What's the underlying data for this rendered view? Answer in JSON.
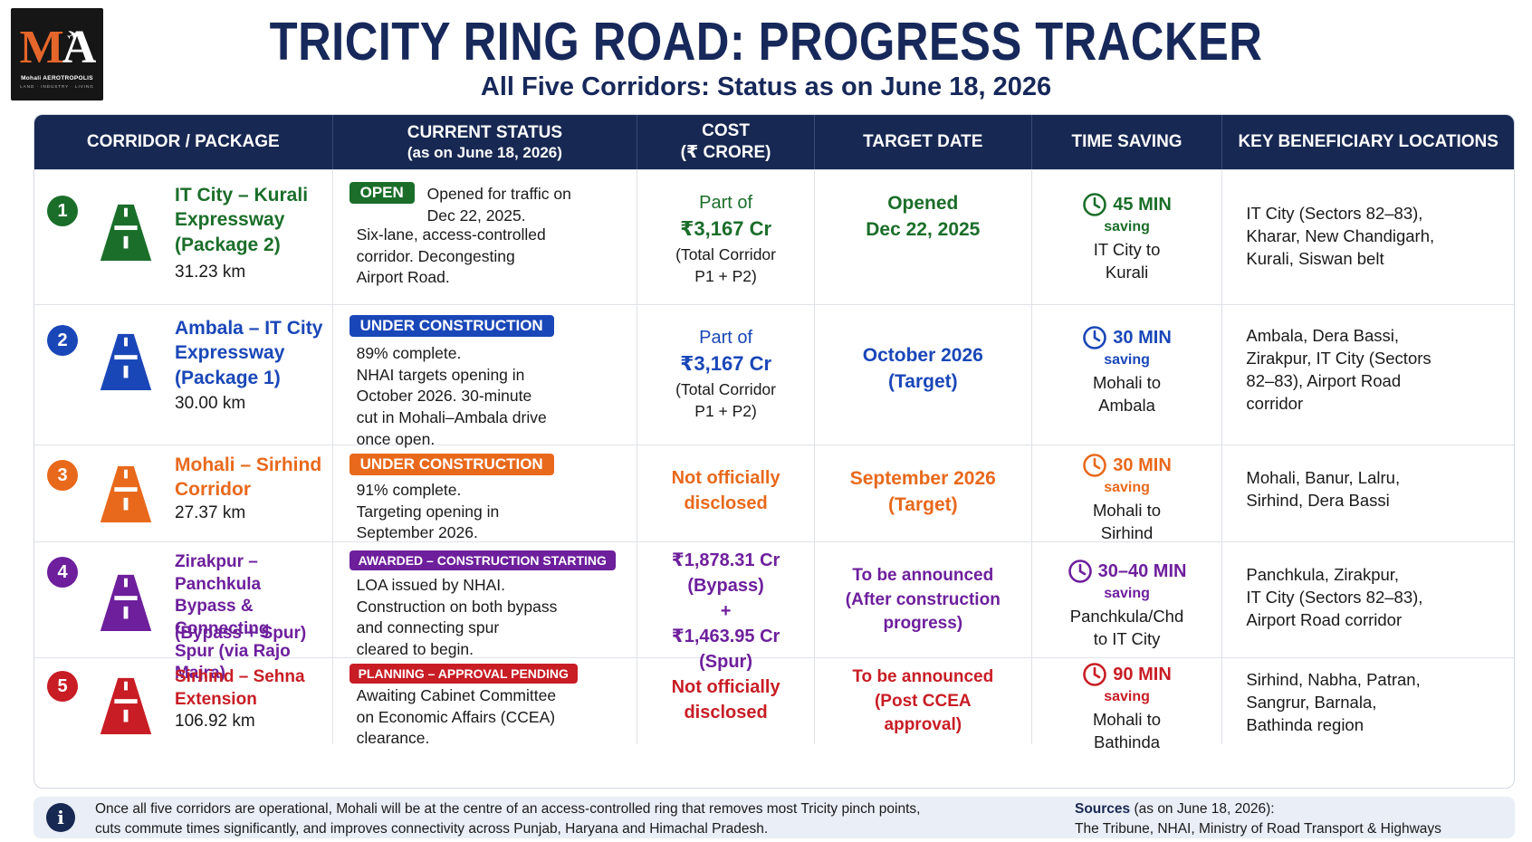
{
  "logo": {
    "mark_m": "M",
    "mark_a": "A",
    "name": "Mohali AEROTROPOLIS",
    "tagline": "LAND · INDUSTRY · LIVING"
  },
  "title": "TRICITY RING ROAD: PROGRESS TRACKER",
  "subtitle": "All Five Corridors: Status as on June 18, 2026",
  "headers": {
    "corridor": "CORRIDOR / PACKAGE",
    "status_l1": "CURRENT STATUS",
    "status_l2": "(as on June 18, 2026)",
    "cost_l1": "COST",
    "cost_l2": "(₹ CRORE)",
    "target": "TARGET DATE",
    "saving": "TIME SAVING",
    "beneficiary": "KEY BENEFICIARY LOCATIONS"
  },
  "colors": {
    "navy": "#172852",
    "green": "#1b6e2a",
    "blue": "#1a47b8",
    "orange": "#e8691c",
    "purple": "#6d1f9c",
    "red": "#c81d25"
  },
  "rows": [
    {
      "num": "1",
      "color": "#1b6e2a",
      "name": [
        "IT City – Kurali",
        "Expressway",
        "(Package 2)"
      ],
      "length": "31.23 km",
      "badge": "OPEN",
      "status_head": [
        "Opened for traffic on",
        "Dec 22, 2025."
      ],
      "status": [
        "Six-lane, access-controlled",
        "corridor. Decongesting",
        "Airport Road."
      ],
      "cost": [
        "Part of",
        "₹3,167 Cr"
      ],
      "cost_note": [
        "(Total Corridor",
        "P1 + P2)"
      ],
      "target": [
        "Opened",
        "Dec 22, 2025"
      ],
      "saving": "45 MIN",
      "saving_word": "saving",
      "route": [
        "IT City to",
        "Kurali"
      ],
      "beneficiary": [
        "IT City (Sectors 82–83),",
        "Kharar, New Chandigarh,",
        "Kurali, Siswan belt"
      ]
    },
    {
      "num": "2",
      "color": "#1a47b8",
      "name": [
        "Ambala – IT City",
        "Expressway",
        "(Package 1)"
      ],
      "length": "30.00 km",
      "badge": "UNDER CONSTRUCTION",
      "status": [
        "89% complete.",
        "NHAI targets opening in",
        "October 2026. 30-minute",
        "cut in Mohali–Ambala drive",
        "once open."
      ],
      "cost": [
        "Part of",
        "₹3,167 Cr"
      ],
      "cost_note": [
        "(Total Corridor",
        "P1 + P2)"
      ],
      "target": [
        "October 2026",
        "(Target)"
      ],
      "saving": "30 MIN",
      "saving_word": "saving",
      "route": [
        "Mohali to",
        "Ambala"
      ],
      "beneficiary": [
        "Ambala, Dera Bassi,",
        "Zirakpur, IT City (Sectors",
        "82–83), Airport Road",
        "corridor"
      ]
    },
    {
      "num": "3",
      "color": "#e8691c",
      "name": [
        "Mohali – Sirhind",
        "Corridor"
      ],
      "length": "27.37 km",
      "badge": "UNDER CONSTRUCTION",
      "status": [
        "91% complete.",
        "Targeting opening in",
        "September 2026."
      ],
      "cost": [
        "Not officially",
        "disclosed"
      ],
      "target": [
        "September 2026",
        "(Target)"
      ],
      "saving": "30 MIN",
      "saving_word": "saving",
      "route": [
        "Mohali to",
        "Sirhind"
      ],
      "beneficiary": [
        "Mohali, Banur, Lalru,",
        "Sirhind, Dera Bassi"
      ]
    },
    {
      "num": "4",
      "color": "#6d1f9c",
      "name": [
        "Zirakpur – Panchkula",
        "Bypass & Connecting",
        "Spur (via Rajo Majra)"
      ],
      "length": "(Bypass + Spur)",
      "badge": "AWARDED – CONSTRUCTION STARTING",
      "status": [
        "LOA issued by NHAI.",
        "Construction on both bypass",
        "and connecting spur",
        "cleared to begin."
      ],
      "cost": [
        "₹1,878.31 Cr",
        "(Bypass)",
        "+",
        "₹1,463.95 Cr",
        "(Spur)"
      ],
      "target": [
        "To be announced",
        "(After construction",
        "progress)"
      ],
      "saving": "30–40 MIN",
      "saving_word": "saving",
      "route": [
        "Panchkula/Chd",
        "to IT City"
      ],
      "beneficiary": [
        "Panchkula, Zirakpur,",
        "IT City (Sectors 82–83),",
        "Airport Road corridor"
      ]
    },
    {
      "num": "5",
      "color": "#c81d25",
      "name": [
        "Sirhind – Sehna",
        "Extension"
      ],
      "length": "106.92 km",
      "badge": "PLANNING – APPROVAL PENDING",
      "status": [
        "Awaiting Cabinet Committee",
        "on Economic Affairs (CCEA)",
        "clearance."
      ],
      "cost": [
        "Not officially",
        "disclosed"
      ],
      "target": [
        "To be announced",
        "(Post CCEA",
        "approval)"
      ],
      "saving": "90 MIN",
      "saving_word": "saving",
      "route": [
        "Mohali to",
        "Bathinda"
      ],
      "beneficiary": [
        "Sirhind, Nabha, Patran,",
        "Sangrur, Barnala,",
        "Bathinda region"
      ]
    }
  ],
  "footer": {
    "info_icon": "i",
    "note_l1": "Once all five corridors are operational, Mohali will be at the centre of an access-controlled ring that removes most Tricity pinch points,",
    "note_l2": "cuts commute times significantly, and improves connectivity across Punjab, Haryana and Himachal Pradesh.",
    "sources_label": "Sources",
    "sources_date": " (as on June 18, 2026):",
    "sources_list": "The Tribune, NHAI, Ministry of Road Transport & Highways"
  }
}
